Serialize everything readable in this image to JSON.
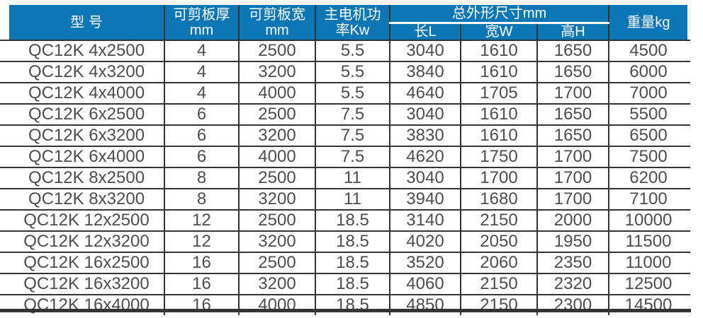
{
  "colors": {
    "header_bg": "#0d76b4",
    "header_text": "#ffffff",
    "body_text": "#4c4d4f",
    "grid_line": "#333333",
    "page_bg": "#ffffff"
  },
  "table": {
    "header": {
      "model": "型 号",
      "thickness": "可剪板厚\nmm",
      "cut_width": "可剪板宽\nmm",
      "power": "主电机功\n率Kw",
      "dimensions_group": "总外形尺寸mm",
      "length": "长L",
      "width_w": "宽W",
      "height": "高H",
      "weight": "重量kg"
    },
    "rows": [
      [
        "QC12K 4x2500",
        "4",
        "2500",
        "5.5",
        "3040",
        "1610",
        "1650",
        "4500"
      ],
      [
        "QC12K 4x3200",
        "4",
        "3200",
        "5.5",
        "3840",
        "1610",
        "1650",
        "6000"
      ],
      [
        "QC12K 4x4000",
        "4",
        "4000",
        "5.5",
        "4640",
        "1705",
        "1700",
        "7000"
      ],
      [
        "QC12K 6x2500",
        "6",
        "2500",
        "7.5",
        "3040",
        "1610",
        "1650",
        "5500"
      ],
      [
        "QC12K 6x3200",
        "6",
        "3200",
        "7.5",
        "3830",
        "1610",
        "1650",
        "6500"
      ],
      [
        "QC12K 6x4000",
        "6",
        "4000",
        "7.5",
        "4620",
        "1750",
        "1700",
        "7500"
      ],
      [
        "QC12K 8x2500",
        "8",
        "2500",
        "11",
        "3040",
        "1700",
        "1700",
        "6200"
      ],
      [
        "QC12K 8x3200",
        "8",
        "3200",
        "11",
        "3940",
        "1680",
        "1700",
        "7100"
      ],
      [
        "QC12K 12x2500",
        "12",
        "2500",
        "18.5",
        "3140",
        "2150",
        "2000",
        "10000"
      ],
      [
        "QC12K 12x3200",
        "12",
        "3200",
        "18.5",
        "4020",
        "2050",
        "1950",
        "11500"
      ],
      [
        "QC12K 16x2500",
        "16",
        "2500",
        "18.5",
        "3520",
        "2060",
        "2350",
        "11000"
      ],
      [
        "QC12K 16x3200",
        "16",
        "3200",
        "18.5",
        "4060",
        "2150",
        "2320",
        "12500"
      ],
      [
        "QC12K 16x4000",
        "16",
        "4000",
        "18.5",
        "4850",
        "2150",
        "2300",
        "14500"
      ]
    ]
  }
}
